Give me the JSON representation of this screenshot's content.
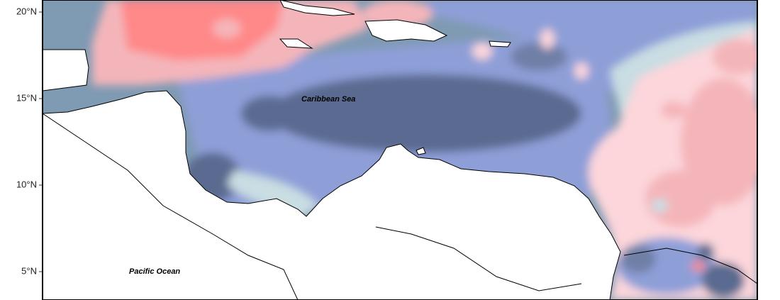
{
  "axis": {
    "ticks": [
      "20°N",
      "15°N",
      "10°N",
      "5°N"
    ]
  },
  "labels": {
    "sea": "Caribbean Sea",
    "ocean": "Pacific Ocean"
  }
}
